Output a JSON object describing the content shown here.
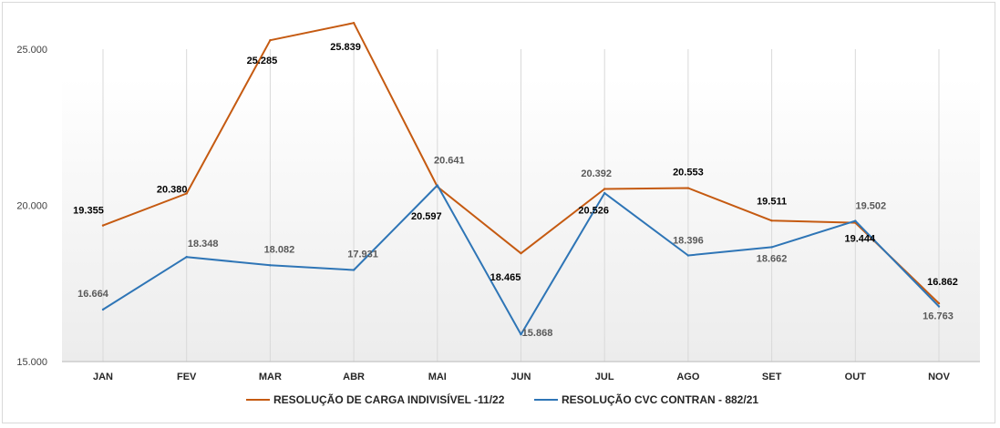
{
  "chart_data": {
    "type": "line",
    "title": "",
    "xlabel": "",
    "ylabel": "",
    "ylim": [
      15000,
      26500
    ],
    "yticks": [
      "15.000",
      "20.000",
      "25.000"
    ],
    "ytick_values": [
      15000,
      20000,
      25000
    ],
    "categories": [
      "JAN",
      "FEV",
      "MAR",
      "ABR",
      "MAI",
      "JUN",
      "JUL",
      "AGO",
      "SET",
      "OUT",
      "NOV"
    ],
    "series": [
      {
        "name": "RESOLUÇÃO DE CARGA INDIVISÍVEL -11/22",
        "color": "#C55A11",
        "values": [
          19355,
          20380,
          25285,
          25839,
          20597,
          18465,
          20526,
          20553,
          19511,
          19444,
          16862
        ],
        "labels": [
          "19.355",
          "20.380",
          "25.285",
          "25.839",
          "20.597",
          "18.465",
          "20.526",
          "20.553",
          "19.511",
          "19.444",
          "16.862"
        ]
      },
      {
        "name": "RESOLUÇÃO CVC CONTRAN - 882/21",
        "color": "#2E75B6",
        "values": [
          16664,
          18348,
          18082,
          17931,
          20641,
          15868,
          20392,
          18396,
          18662,
          19502,
          16763
        ],
        "labels": [
          "16.664",
          "18.348",
          "18.082",
          "17.931",
          "20.641",
          "15.868",
          "20.392",
          "18.396",
          "18.662",
          "19.502",
          "16.763"
        ]
      }
    ],
    "legend_position": "bottom"
  }
}
